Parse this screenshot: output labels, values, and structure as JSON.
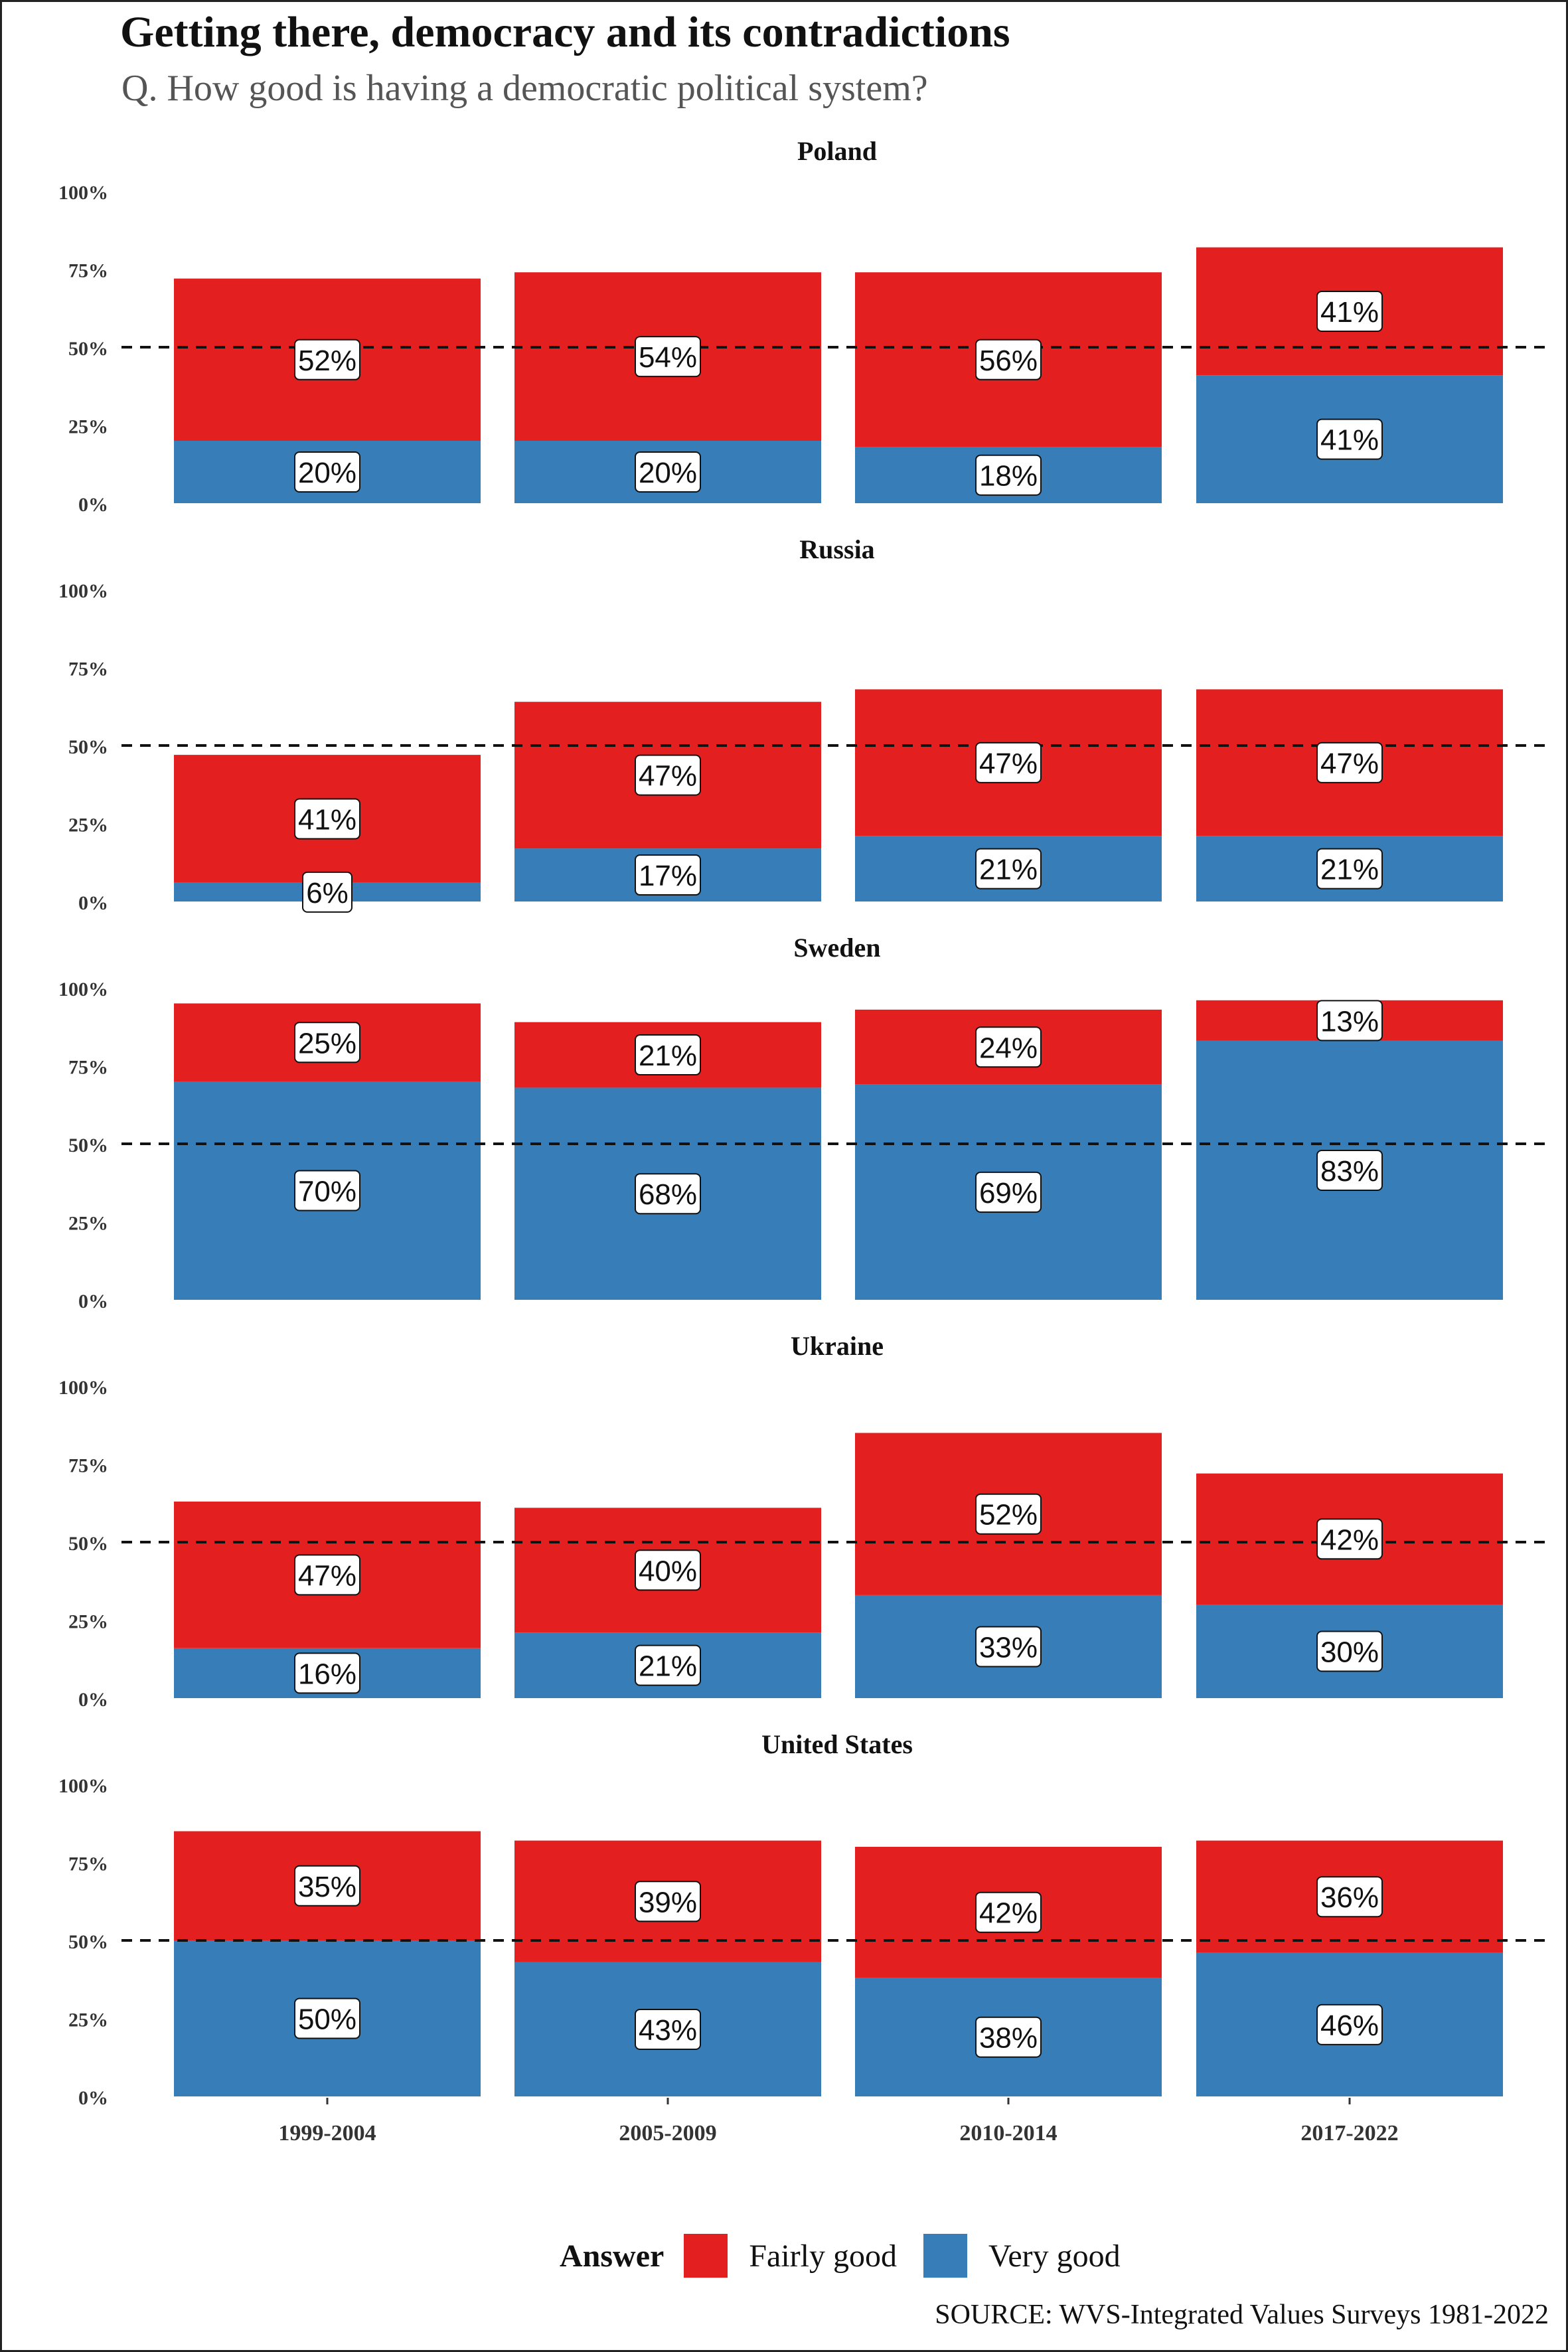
{
  "title": "Getting there, democracy and its contradictions",
  "subtitle": "Q. How good is having a democratic political system?",
  "source": "SOURCE: WVS-Integrated Values Surveys 1981-2022",
  "legend": {
    "title": "Answer",
    "items": [
      {
        "label": "Fairly good",
        "color": "#e41f1f"
      },
      {
        "label": "Very good",
        "color": "#377eb8"
      }
    ]
  },
  "chart_data": {
    "type": "bar",
    "stacked": true,
    "facets": [
      "Poland",
      "Russia",
      "Sweden",
      "Ukraine",
      "United States"
    ],
    "categories": [
      "1999-2004",
      "2005-2009",
      "2010-2014",
      "2017-2022"
    ],
    "y_ticks": [
      "0%",
      "25%",
      "50%",
      "75%",
      "100%"
    ],
    "ylim": [
      0,
      100
    ],
    "reference_line": 50,
    "panels": [
      {
        "name": "Poland",
        "very_good": [
          20,
          20,
          18,
          41
        ],
        "fairly_good": [
          52,
          54,
          56,
          41
        ]
      },
      {
        "name": "Russia",
        "very_good": [
          6,
          17,
          21,
          21
        ],
        "fairly_good": [
          41,
          47,
          47,
          47
        ]
      },
      {
        "name": "Sweden",
        "very_good": [
          70,
          68,
          69,
          83
        ],
        "fairly_good": [
          25,
          21,
          24,
          13
        ]
      },
      {
        "name": "Ukraine",
        "very_good": [
          16,
          21,
          33,
          30
        ],
        "fairly_good": [
          47,
          40,
          52,
          42
        ]
      },
      {
        "name": "United States",
        "very_good": [
          50,
          43,
          38,
          46
        ],
        "fairly_good": [
          35,
          39,
          42,
          36
        ]
      }
    ],
    "label_suffix": "%",
    "grid": false,
    "legend_position": "bottom"
  }
}
